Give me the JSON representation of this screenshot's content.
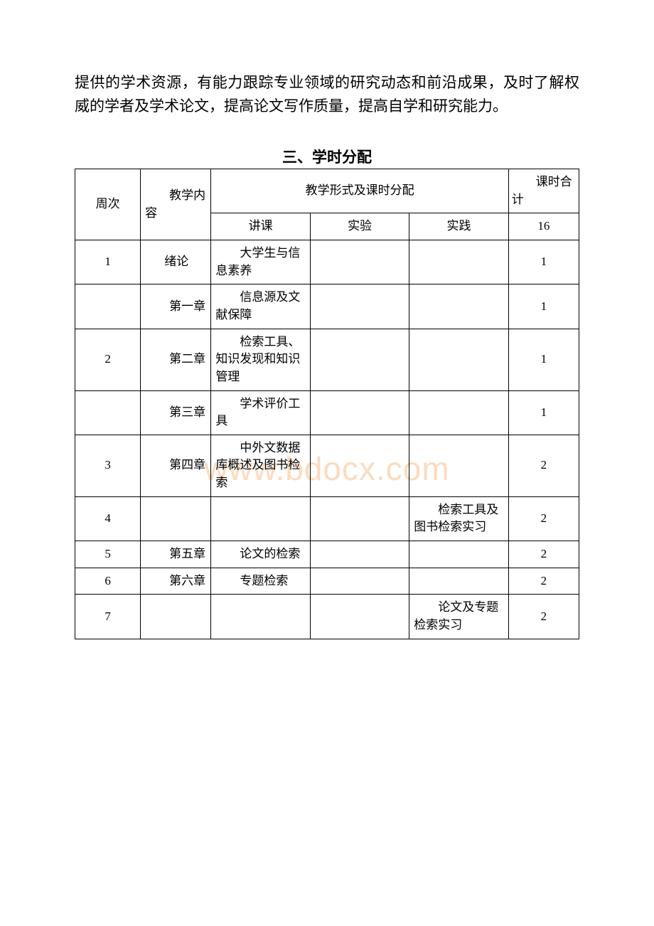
{
  "intro_text": "提供的学术资源，有能力跟踪专业领域的研究动态和前沿成果，及时了解权威的学者及学术论文，提高论文写作质量，提高自学和研究能力。",
  "section_title": "三、学时分配",
  "watermark": "www.bdocx.com",
  "table": {
    "headers": {
      "week": "周次",
      "content": "教学内容",
      "form_merged": "教学形式及课时分配",
      "total": "课时合计",
      "lecture": "讲课",
      "lab": "实验",
      "practice": "实践",
      "total_value": "16"
    },
    "rows": [
      {
        "week": "1",
        "content": "绪论",
        "lecture": "大学生与信息素养",
        "lab": "",
        "practice": "",
        "total": "1"
      },
      {
        "week": "",
        "content": "第一章",
        "lecture": "信息源及文献保障",
        "lab": "",
        "practice": "",
        "total": "1"
      },
      {
        "week": "2",
        "content": "第二章",
        "lecture": "检索工具、知识发现和知识管理",
        "lab": "",
        "practice": "",
        "total": "1"
      },
      {
        "week": "",
        "content": "第三章",
        "lecture": "学术评价工具",
        "lab": "",
        "practice": "",
        "total": "1"
      },
      {
        "week": "3",
        "content": "第四章",
        "lecture": "中外文数据库概述及图书检索",
        "lab": "",
        "practice": "",
        "total": "2"
      },
      {
        "week": "4",
        "content": "",
        "lecture": "",
        "lab": "",
        "practice": "检索工具及图书检索实习",
        "total": "2"
      },
      {
        "week": "5",
        "content": "第五章",
        "lecture": "论文的检索",
        "lab": "",
        "practice": "",
        "total": "2"
      },
      {
        "week": "6",
        "content": "第六章",
        "lecture": "专题检索",
        "lab": "",
        "practice": "",
        "total": "2"
      },
      {
        "week": "7",
        "content": "",
        "lecture": "",
        "lab": "",
        "practice": "论文及专题检索实习",
        "total": "2"
      }
    ]
  },
  "colors": {
    "text": "#000000",
    "border": "#000000",
    "background": "#ffffff",
    "watermark": "rgba(252, 213, 180, 0.85)"
  },
  "typography": {
    "body_fontsize": 21,
    "table_fontsize": 17,
    "watermark_fontsize": 46,
    "font_family": "SimSun"
  }
}
